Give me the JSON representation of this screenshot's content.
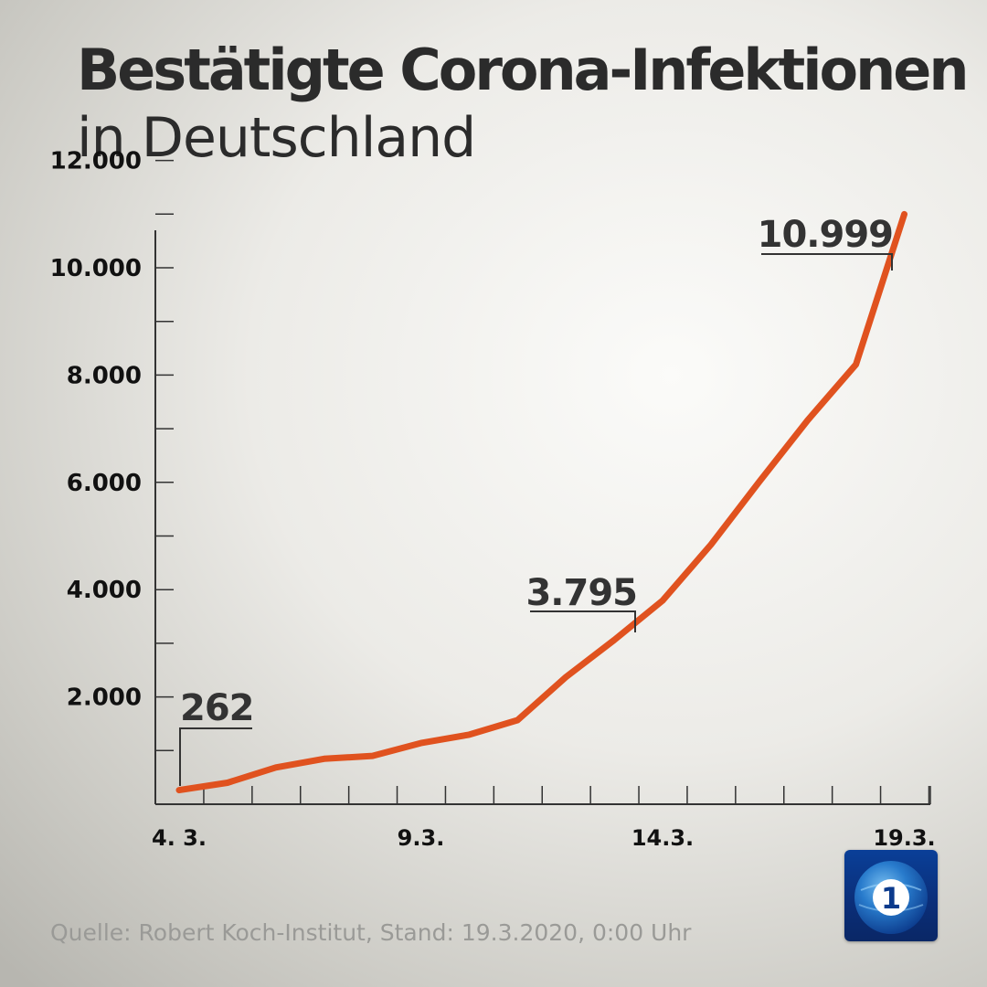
{
  "header": {
    "title": "Bestätigte Corona-Infektionen",
    "subtitle": "in Deutschland"
  },
  "source": "Quelle: Robert Koch-Institut, Stand: 19.3.2020, 0:00 Uhr",
  "logo": {
    "icon": "tagesschau-logo-icon",
    "glyph": "1"
  },
  "colors": {
    "line": "#e0521f",
    "axis": "#333333",
    "text": "#2b2b2b"
  },
  "chart_data": {
    "type": "line",
    "title": "Bestätigte Corona-Infektionen",
    "subtitle": "in Deutschland",
    "x": [
      "4. 3.",
      "5. 3.",
      "6. 3.",
      "7. 3.",
      "8. 3.",
      "9.3.",
      "10. 3.",
      "11. 3.",
      "12. 3.",
      "13. 3.",
      "14.3.",
      "15. 3.",
      "16. 3.",
      "17. 3.",
      "18. 3.",
      "19.3."
    ],
    "x_tick_labels": [
      {
        "index": 0,
        "label": "4. 3."
      },
      {
        "index": 5,
        "label": "9.3."
      },
      {
        "index": 10,
        "label": "14.3."
      },
      {
        "index": 15,
        "label": "19.3."
      }
    ],
    "series": [
      {
        "values": [
          262,
          400,
          684,
          847,
          902,
          1139,
          1296,
          1567,
          2369,
          3062,
          3795,
          4838,
          6012,
          7156,
          8198,
          10999
        ]
      }
    ],
    "data_labels": [
      {
        "index": 0,
        "text": "262"
      },
      {
        "index": 10,
        "text": "3.795"
      },
      {
        "index": 15,
        "text": "10.999"
      }
    ],
    "y_ticks": [
      2000,
      4000,
      6000,
      8000,
      10000,
      12000
    ],
    "y_tick_labels": [
      "2.000",
      "4.000",
      "6.000",
      "8.000",
      "10.000",
      "12.000"
    ],
    "ylim": [
      0,
      12000
    ],
    "grid": false,
    "legend": "none"
  }
}
